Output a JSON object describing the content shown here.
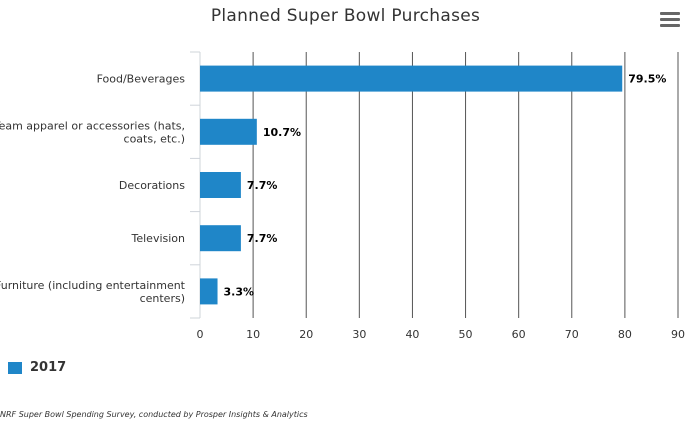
{
  "title": "Planned Super Bowl Purchases",
  "menu_icon": "hamburger-menu-icon",
  "credit": "NRF Super Bowl Spending Survey, conducted by Prosper Insights & Analytics",
  "colors": {
    "bar": "#1f86c8",
    "grid": "#555555",
    "axis_line": "#cfd4da",
    "text": "#333333"
  },
  "chart_data": {
    "type": "bar",
    "orientation": "horizontal",
    "title": "Planned Super Bowl Purchases",
    "categories": [
      [
        "Food/Beverages"
      ],
      [
        "Team apparel or accessories (hats,",
        "coats, etc.)"
      ],
      [
        "Decorations"
      ],
      [
        "Television"
      ],
      [
        "Furniture (including entertainment",
        "centers)"
      ]
    ],
    "series": [
      {
        "name": "2017",
        "values": [
          79.5,
          10.7,
          7.7,
          7.7,
          3.3
        ],
        "labels": [
          "79.5%",
          "10.7%",
          "7.7%",
          "7.7%",
          "3.3%"
        ]
      }
    ],
    "xlim": [
      0,
      90
    ],
    "xticks": [
      0,
      10,
      20,
      30,
      40,
      50,
      60,
      70,
      80,
      90
    ],
    "grid": true,
    "legend": "bottom-left"
  }
}
